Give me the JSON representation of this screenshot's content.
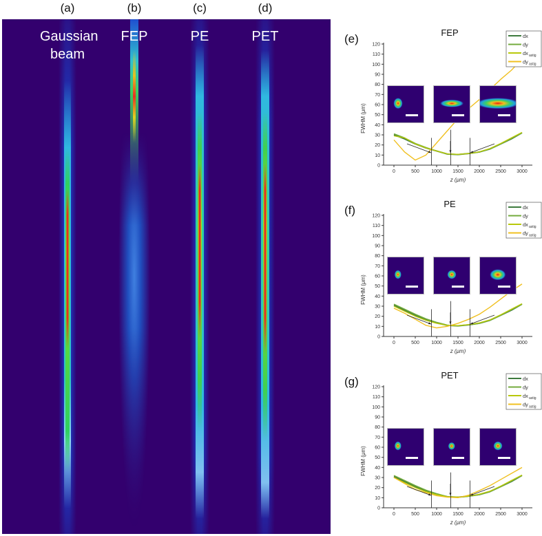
{
  "panel_labels": [
    "(a)",
    "(b)",
    "(c)",
    "(d)"
  ],
  "beam_titles": [
    "Gaussian beam",
    "FEP",
    "PE",
    "PET"
  ],
  "colors": {
    "background": "#33006e",
    "dx": "#3d7a3d",
    "dy": "#73ab3c",
    "dx_astig": "#b8c80a",
    "dy_astig": "#f0c020"
  },
  "chart_data": [
    {
      "type": "line",
      "panel": "(e)",
      "title": "FEP",
      "xlabel": "z (μm)",
      "ylabel": "FWHM (μm)",
      "xlim": [
        0,
        3000
      ],
      "ylim": [
        0,
        120
      ],
      "xticks": [
        0,
        500,
        1000,
        1500,
        2000,
        2500,
        3000
      ],
      "yticks": [
        0,
        10,
        20,
        30,
        40,
        50,
        60,
        70,
        80,
        90,
        100,
        110,
        120
      ],
      "legend": {
        "position": "top-right",
        "entries": [
          "dx",
          "dy",
          "dx",
          "dy"
        ],
        "subscripts": [
          "",
          "",
          "astig",
          "astig"
        ]
      },
      "markers_z": [
        880,
        1330,
        1780
      ],
      "x": [
        0,
        250,
        500,
        750,
        1000,
        1250,
        1500,
        1750,
        2000,
        2250,
        2500,
        2750,
        3000
      ],
      "series": [
        {
          "name": "dx",
          "values": [
            30,
            26,
            21,
            17,
            14,
            11,
            10.5,
            11.5,
            13,
            16,
            21,
            26,
            32
          ]
        },
        {
          "name": "dy",
          "values": [
            31,
            27,
            21.5,
            17.5,
            14,
            11,
            10.5,
            11.5,
            13,
            16,
            21,
            26.5,
            32
          ]
        },
        {
          "name": "dx_astig",
          "values": [
            29,
            27,
            21,
            17,
            14,
            11.2,
            10.7,
            11.5,
            13.2,
            16.5,
            21.5,
            27,
            32.5
          ]
        },
        {
          "name": "dy_astig",
          "values": [
            25,
            13,
            5,
            10,
            22,
            34,
            46,
            56,
            65,
            75,
            85,
            94,
            105
          ]
        }
      ]
    },
    {
      "type": "line",
      "panel": "(f)",
      "title": "PE",
      "xlabel": "z (μm)",
      "ylabel": "FWHM (μm)",
      "xlim": [
        0,
        3000
      ],
      "ylim": [
        0,
        120
      ],
      "xticks": [
        0,
        500,
        1000,
        1500,
        2000,
        2500,
        3000
      ],
      "yticks": [
        0,
        10,
        20,
        30,
        40,
        50,
        60,
        70,
        80,
        90,
        100,
        110,
        120
      ],
      "legend": {
        "position": "top-right",
        "entries": [
          "dx",
          "dy",
          "dx",
          "dy"
        ],
        "subscripts": [
          "",
          "",
          "astig",
          "astig"
        ]
      },
      "markers_z": [
        880,
        1330,
        1780
      ],
      "x": [
        0,
        250,
        500,
        750,
        1000,
        1250,
        1500,
        1750,
        2000,
        2250,
        2500,
        2750,
        3000
      ],
      "series": [
        {
          "name": "dx",
          "values": [
            31,
            26,
            21,
            17,
            13.5,
            11,
            10.5,
            11.5,
            13,
            16,
            21,
            26,
            32
          ]
        },
        {
          "name": "dy",
          "values": [
            32,
            27,
            22,
            17.5,
            14,
            11.2,
            10.5,
            11.5,
            13,
            16,
            21,
            26.5,
            32
          ]
        },
        {
          "name": "dx_astig",
          "values": [
            30,
            25,
            20,
            16,
            13,
            11,
            10.8,
            11.8,
            13.5,
            16.5,
            21.5,
            27,
            32.5
          ]
        },
        {
          "name": "dy_astig",
          "values": [
            28,
            23,
            17,
            11,
            8.5,
            10,
            13,
            17,
            22,
            29,
            37,
            45,
            52
          ]
        }
      ]
    },
    {
      "type": "line",
      "panel": "(g)",
      "title": "PET",
      "xlabel": "z (μm)",
      "ylabel": "FWHM (μm)",
      "xlim": [
        0,
        3000
      ],
      "ylim": [
        0,
        120
      ],
      "xticks": [
        0,
        500,
        1000,
        1500,
        2000,
        2500,
        3000
      ],
      "yticks": [
        0,
        10,
        20,
        30,
        40,
        50,
        60,
        70,
        80,
        90,
        100,
        110,
        120
      ],
      "legend": {
        "position": "top-right",
        "entries": [
          "dx",
          "dy",
          "dx",
          "dy"
        ],
        "subscripts": [
          "",
          "",
          "astig",
          "astig"
        ]
      },
      "markers_z": [
        880,
        1330,
        1780
      ],
      "x": [
        0,
        250,
        500,
        750,
        1000,
        1250,
        1500,
        1750,
        2000,
        2250,
        2500,
        2750,
        3000
      ],
      "series": [
        {
          "name": "dx",
          "values": [
            31,
            26,
            21,
            17,
            13.5,
            11,
            10.5,
            11.5,
            13,
            16,
            21,
            26,
            32
          ]
        },
        {
          "name": "dy",
          "values": [
            32,
            27,
            22,
            17.5,
            14,
            11,
            10.5,
            11.5,
            13,
            16,
            21,
            26.5,
            32
          ]
        },
        {
          "name": "dx_astig",
          "values": [
            30,
            25,
            20,
            16,
            13,
            11,
            10.5,
            11.5,
            13.5,
            16.5,
            21.5,
            27,
            32.5
          ]
        },
        {
          "name": "dy_astig",
          "values": [
            30,
            24,
            18,
            15,
            12,
            10.5,
            10,
            12.5,
            17,
            22,
            28,
            34,
            40
          ]
        }
      ]
    }
  ]
}
